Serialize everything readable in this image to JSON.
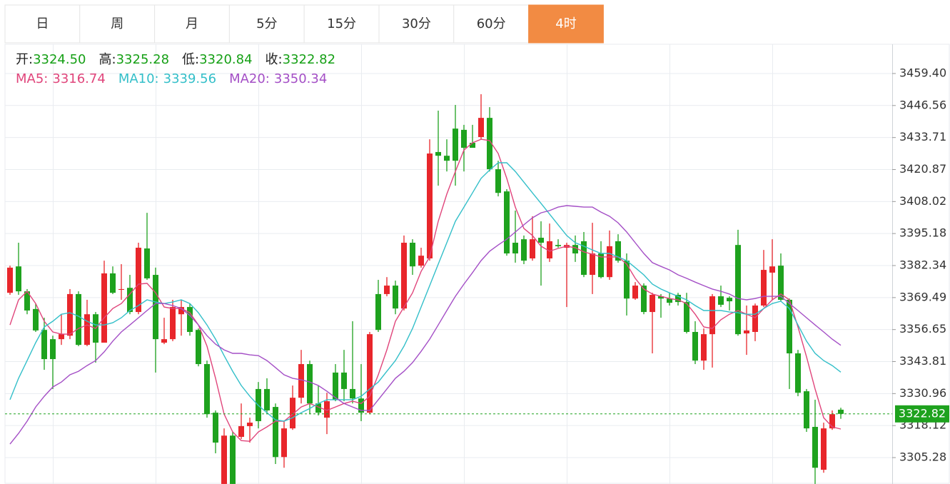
{
  "tabs": [
    {
      "label": "日",
      "active": false
    },
    {
      "label": "周",
      "active": false
    },
    {
      "label": "月",
      "active": false
    },
    {
      "label": "5分",
      "active": false
    },
    {
      "label": "15分",
      "active": false
    },
    {
      "label": "30分",
      "active": false
    },
    {
      "label": "60分",
      "active": false
    },
    {
      "label": "4时",
      "active": true
    }
  ],
  "header": {
    "ohlc": [
      {
        "label": "开:",
        "value": "3324.50"
      },
      {
        "label": "高:",
        "value": "3325.28"
      },
      {
        "label": "低:",
        "value": "3320.84"
      },
      {
        "label": "收:",
        "value": "3322.82"
      }
    ],
    "ma": [
      {
        "label": "MA5:",
        "value": "3316.74",
        "color": "#e0457b"
      },
      {
        "label": "MA10:",
        "value": "3339.56",
        "color": "#33bfc9"
      },
      {
        "label": "MA20:",
        "value": "3350.34",
        "color": "#a44fc6"
      }
    ]
  },
  "chart_data": {
    "type": "candlestick",
    "up_color": "#e8262b",
    "down_color": "#1ea21e",
    "grid": true,
    "current_price_line": true,
    "ylim": [
      3294.68,
      3471.14
    ],
    "yticks": [
      {
        "value": 3459.4,
        "label": "3459.40"
      },
      3446.56,
      3433.71,
      3420.87,
      3408.02,
      3395.18,
      3382.34,
      3369.49,
      3356.65,
      3343.81,
      3330.96,
      3318.12,
      3305.28
    ],
    "ohlc": [
      [
        3371.4,
        3382.3,
        3370.6,
        3381.5
      ],
      [
        3382.0,
        3391.5,
        3370.6,
        3372.0
      ],
      [
        3372.0,
        3372.9,
        3362.8,
        3364.3
      ],
      [
        3364.9,
        3367.1,
        3355.7,
        3356.3
      ],
      [
        3356.5,
        3361.4,
        3340.5,
        3344.8
      ],
      [
        3352.8,
        3354.2,
        3332.8,
        3344.8
      ],
      [
        3352.8,
        3362.8,
        3350.5,
        3354.8
      ],
      [
        3354.2,
        3372.9,
        3352.8,
        3370.9
      ],
      [
        3370.9,
        3372.0,
        3350.0,
        3350.5
      ],
      [
        3350.5,
        3368.6,
        3350.0,
        3362.8
      ],
      [
        3362.8,
        3363.7,
        3343.4,
        3351.4
      ],
      [
        3351.4,
        3384.3,
        3351.4,
        3379.2
      ],
      [
        3379.2,
        3382.0,
        3370.9,
        3371.4
      ],
      [
        3372.6,
        3382.9,
        3368.6,
        3372.9
      ],
      [
        3373.4,
        3378.6,
        3362.8,
        3363.7
      ],
      [
        3363.7,
        3391.5,
        3362.8,
        3389.5
      ],
      [
        3389.2,
        3403.5,
        3376.6,
        3377.2
      ],
      [
        3378.6,
        3381.5,
        3339.4,
        3352.8
      ],
      [
        3351.4,
        3361.4,
        3350.8,
        3352.8
      ],
      [
        3352.8,
        3368.6,
        3352.0,
        3365.7
      ],
      [
        3362.8,
        3368.6,
        3354.2,
        3365.7
      ],
      [
        3365.7,
        3367.1,
        3354.2,
        3355.7
      ],
      [
        3356.5,
        3357.1,
        3341.9,
        3342.8
      ],
      [
        3342.8,
        3344.2,
        3321.3,
        3322.7
      ],
      [
        3323.3,
        3324.2,
        3307.0,
        3311.3
      ],
      [
        3294.7,
        3317.0,
        3294.7,
        3314.1
      ],
      [
        3314.1,
        3315.6,
        3294.7,
        3294.7
      ],
      [
        3313.6,
        3327.0,
        3312.7,
        3317.9
      ],
      [
        3317.9,
        3321.3,
        3311.3,
        3319.3
      ],
      [
        3332.8,
        3335.6,
        3317.0,
        3319.9
      ],
      [
        3332.8,
        3337.1,
        3322.7,
        3324.2
      ],
      [
        3325.6,
        3327.0,
        3302.7,
        3305.5
      ],
      [
        3305.5,
        3319.9,
        3301.2,
        3317.0
      ],
      [
        3317.0,
        3334.2,
        3316.4,
        3329.3
      ],
      [
        3329.3,
        3348.5,
        3327.0,
        3342.8
      ],
      [
        3342.8,
        3344.2,
        3322.7,
        3327.0
      ],
      [
        3327.0,
        3334.2,
        3322.2,
        3323.3
      ],
      [
        3321.3,
        3331.3,
        3314.7,
        3327.9
      ],
      [
        3339.4,
        3342.8,
        3327.9,
        3328.5
      ],
      [
        3339.4,
        3348.5,
        3327.9,
        3332.8
      ],
      [
        3332.8,
        3360.0,
        3327.0,
        3329.0
      ],
      [
        3329.0,
        3342.8,
        3319.9,
        3323.3
      ],
      [
        3323.3,
        3355.7,
        3322.7,
        3354.8
      ],
      [
        3370.9,
        3376.6,
        3355.7,
        3356.5
      ],
      [
        3370.9,
        3377.7,
        3370.0,
        3374.3
      ],
      [
        3374.3,
        3376.3,
        3362.8,
        3365.1
      ],
      [
        3365.1,
        3394.4,
        3364.3,
        3391.5
      ],
      [
        3391.5,
        3392.9,
        3378.6,
        3382.0
      ],
      [
        3382.3,
        3389.5,
        3381.5,
        3386.3
      ],
      [
        3385.2,
        3433.0,
        3384.3,
        3427.3
      ],
      [
        3427.9,
        3444.5,
        3414.4,
        3426.4
      ],
      [
        3426.4,
        3433.0,
        3420.1,
        3424.4
      ],
      [
        3437.3,
        3446.8,
        3414.4,
        3424.4
      ],
      [
        3436.8,
        3438.8,
        3420.1,
        3429.6
      ],
      [
        3431.6,
        3438.8,
        3430.2,
        3429.6
      ],
      [
        3433.9,
        3451.1,
        3433.0,
        3441.6
      ],
      [
        3441.6,
        3445.9,
        3420.1,
        3421.0
      ],
      [
        3421.0,
        3424.4,
        3410.1,
        3411.5
      ],
      [
        3412.1,
        3413.0,
        3386.3,
        3387.2
      ],
      [
        3391.5,
        3404.4,
        3383.5,
        3387.2
      ],
      [
        3392.9,
        3394.4,
        3382.9,
        3384.3
      ],
      [
        3385.2,
        3402.1,
        3384.3,
        3392.9
      ],
      [
        3393.5,
        3400.1,
        3374.3,
        3391.5
      ],
      [
        3385.2,
        3399.2,
        3383.8,
        3392.1
      ],
      [
        3390.6,
        3392.9,
        3389.5,
        3390.1
      ],
      [
        3389.5,
        3391.5,
        3365.7,
        3390.6
      ],
      [
        3390.6,
        3394.4,
        3383.8,
        3387.2
      ],
      [
        3392.1,
        3395.8,
        3377.7,
        3378.6
      ],
      [
        3378.6,
        3399.5,
        3370.9,
        3387.2
      ],
      [
        3387.2,
        3392.1,
        3377.2,
        3377.7
      ],
      [
        3377.7,
        3396.4,
        3376.6,
        3390.1
      ],
      [
        3392.1,
        3394.9,
        3383.5,
        3384.3
      ],
      [
        3384.3,
        3387.2,
        3362.3,
        3369.1
      ],
      [
        3369.1,
        3375.7,
        3368.6,
        3374.3
      ],
      [
        3374.3,
        3375.2,
        3362.8,
        3363.7
      ],
      [
        3363.7,
        3371.4,
        3347.1,
        3370.6
      ],
      [
        3370.0,
        3370.9,
        3361.4,
        3369.1
      ],
      [
        3369.1,
        3371.4,
        3366.3,
        3367.4
      ],
      [
        3370.6,
        3371.4,
        3366.3,
        3367.7
      ],
      [
        3367.7,
        3371.4,
        3355.1,
        3355.7
      ],
      [
        3355.7,
        3360.0,
        3342.8,
        3344.2
      ],
      [
        3344.2,
        3357.1,
        3340.5,
        3354.8
      ],
      [
        3354.8,
        3370.9,
        3341.4,
        3370.0
      ],
      [
        3370.0,
        3374.3,
        3365.7,
        3366.6
      ],
      [
        3369.4,
        3370.0,
        3364.3,
        3368.0
      ],
      [
        3390.6,
        3396.7,
        3354.2,
        3354.8
      ],
      [
        3355.1,
        3366.3,
        3346.5,
        3356.3
      ],
      [
        3355.7,
        3367.1,
        3352.0,
        3366.3
      ],
      [
        3366.3,
        3388.6,
        3365.7,
        3380.6
      ],
      [
        3379.5,
        3392.9,
        3368.6,
        3382.0
      ],
      [
        3382.3,
        3387.2,
        3368.0,
        3368.6
      ],
      [
        3368.6,
        3369.1,
        3332.8,
        3347.1
      ],
      [
        3347.1,
        3348.5,
        3329.9,
        3331.3
      ],
      [
        3331.9,
        3332.8,
        3315.6,
        3317.0
      ],
      [
        3317.6,
        3328.5,
        3294.7,
        3301.2
      ],
      [
        3300.4,
        3319.3,
        3299.2,
        3317.0
      ],
      [
        3317.0,
        3324.2,
        3316.4,
        3322.7
      ],
      [
        3324.5,
        3325.28,
        3320.84,
        3322.82
      ]
    ],
    "ma": [
      {
        "color": "#e0457b",
        "values": [
          3358.5,
          3368.6,
          3372.0,
          3367.1,
          3360.0,
          3355.7,
          3354.8,
          3354.8,
          3357.1,
          3358.5,
          3357.1,
          3361.4,
          3365.1,
          3367.1,
          3370.9,
          3374.9,
          3375.2,
          3371.4,
          3365.7,
          3365.1,
          3365.1,
          3363.4,
          3358.5,
          3350.0,
          3337.1,
          3322.7,
          3315.6,
          3312.1,
          3311.8,
          3315.6,
          3317.6,
          3319.9,
          3319.9,
          3322.7,
          3325.6,
          3327.0,
          3325.6,
          3324.2,
          3325.6,
          3327.0,
          3327.9,
          3327.0,
          3329.9,
          3338.5,
          3348.5,
          3360.0,
          3365.7,
          3371.4,
          3380.0,
          3385.8,
          3400.1,
          3411.0,
          3420.1,
          3428.7,
          3431.6,
          3433.0,
          3432.5,
          3427.3,
          3417.3,
          3405.8,
          3397.2,
          3394.4,
          3390.1,
          3388.1,
          3389.2,
          3390.1,
          3389.5,
          3387.8,
          3386.9,
          3385.8,
          3385.8,
          3385.8,
          3382.9,
          3377.2,
          3372.9,
          3370.9,
          3370.0,
          3369.1,
          3368.6,
          3367.1,
          3362.8,
          3357.7,
          3357.1,
          3360.6,
          3362.8,
          3364.3,
          3362.8,
          3361.4,
          3365.1,
          3368.6,
          3370.9,
          3368.6,
          3357.7,
          3345.7,
          3332.8,
          3321.3,
          3317.6,
          3316.74
        ]
      },
      {
        "color": "#33bfc9",
        "values": [
          3328.5,
          3337.1,
          3344.2,
          3351.4,
          3357.7,
          3360.0,
          3362.8,
          3363.4,
          3362.0,
          3360.0,
          3358.5,
          3358.5,
          3359.4,
          3361.4,
          3364.3,
          3366.3,
          3368.6,
          3367.7,
          3367.1,
          3367.7,
          3368.6,
          3367.1,
          3363.4,
          3358.5,
          3352.8,
          3346.2,
          3339.9,
          3334.2,
          3329.9,
          3326.2,
          3323.3,
          3320.4,
          3319.9,
          3321.3,
          3323.3,
          3325.0,
          3327.0,
          3328.5,
          3328.5,
          3328.5,
          3328.5,
          3329.9,
          3332.8,
          3335.6,
          3339.9,
          3344.2,
          3350.0,
          3357.1,
          3365.7,
          3374.3,
          3382.9,
          3391.5,
          3400.1,
          3405.8,
          3411.5,
          3417.3,
          3420.7,
          3423.6,
          3423.6,
          3420.1,
          3415.8,
          3411.5,
          3407.3,
          3403.0,
          3398.7,
          3394.4,
          3391.5,
          3390.1,
          3388.6,
          3387.2,
          3387.2,
          3385.8,
          3384.3,
          3381.5,
          3378.6,
          3374.9,
          3372.9,
          3371.4,
          3370.0,
          3368.6,
          3366.3,
          3364.3,
          3364.3,
          3364.3,
          3363.7,
          3363.4,
          3362.8,
          3362.8,
          3365.1,
          3367.1,
          3368.0,
          3365.1,
          3358.5,
          3352.0,
          3347.1,
          3344.2,
          3342.2,
          3339.56
        ]
      },
      {
        "color": "#a44fc6",
        "values": [
          3310.7,
          3315.0,
          3319.9,
          3325.6,
          3329.9,
          3333.6,
          3335.6,
          3338.5,
          3339.9,
          3342.2,
          3344.2,
          3347.7,
          3352.0,
          3355.7,
          3358.5,
          3361.4,
          3364.3,
          3367.1,
          3367.1,
          3366.3,
          3365.1,
          3362.3,
          3358.5,
          3354.2,
          3350.8,
          3348.5,
          3347.1,
          3347.1,
          3346.5,
          3346.2,
          3344.2,
          3341.4,
          3338.5,
          3337.1,
          3336.5,
          3335.6,
          3334.2,
          3331.9,
          3329.3,
          3327.0,
          3325.6,
          3324.2,
          3324.2,
          3328.5,
          3332.8,
          3337.1,
          3339.9,
          3343.4,
          3347.9,
          3352.8,
          3358.5,
          3364.3,
          3370.0,
          3374.9,
          3379.5,
          3384.3,
          3388.1,
          3390.6,
          3392.9,
          3395.8,
          3398.7,
          3401.5,
          3403.5,
          3404.4,
          3405.8,
          3406.4,
          3406.1,
          3405.8,
          3405.8,
          3403.8,
          3402.1,
          3399.5,
          3395.8,
          3391.5,
          3387.2,
          3383.5,
          3382.0,
          3380.6,
          3378.6,
          3377.2,
          3375.7,
          3374.3,
          3372.9,
          3372.0,
          3370.9,
          3369.1,
          3368.6,
          3369.1,
          3370.0,
          3370.0,
          3370.0,
          3367.1,
          3364.3,
          3361.4,
          3358.5,
          3355.7,
          3352.8,
          3350.34
        ]
      }
    ]
  }
}
